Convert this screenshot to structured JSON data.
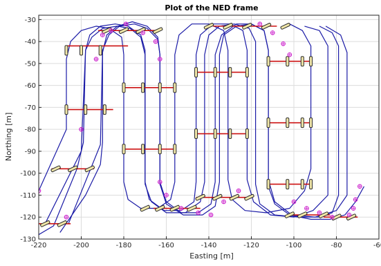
{
  "chart_data": {
    "type": "line",
    "title": "Plot of the NED frame",
    "xlabel": "Easting [m]",
    "ylabel": "Northing [m]",
    "xlim": [
      -220,
      -60
    ],
    "ylim": [
      -130,
      -28
    ],
    "xticks": [
      -220,
      -200,
      -180,
      -160,
      -140,
      -120,
      -100,
      -80,
      -60
    ],
    "yticks": [
      -130,
      -120,
      -110,
      -100,
      -90,
      -80,
      -70,
      -60,
      -50,
      -40,
      -30
    ],
    "grid": true,
    "colors": {
      "path": "#1a1aa6",
      "segment": "#cc1111",
      "marker": "#cc22cc",
      "glyph": "#2b2b2b"
    },
    "series": [
      {
        "polyline": [
          [
            -220,
            -108
          ],
          [
            -207,
            -80
          ],
          [
            -207,
            -48
          ],
          [
            -205,
            -40
          ],
          [
            -200,
            -35
          ],
          [
            -193,
            -33
          ],
          [
            -187,
            -34
          ],
          [
            -181,
            -38
          ],
          [
            -180,
            -46
          ],
          [
            -180,
            -104
          ],
          [
            -178,
            -112
          ],
          [
            -172,
            -116
          ],
          [
            -164,
            -116
          ],
          [
            -158,
            -112
          ],
          [
            -156,
            -104
          ],
          [
            -156,
            -46
          ],
          [
            -154,
            -37
          ],
          [
            -148,
            -32
          ],
          [
            -140,
            -32
          ],
          [
            -133,
            -35
          ],
          [
            -131,
            -44
          ],
          [
            -131,
            -103
          ],
          [
            -129,
            -112
          ],
          [
            -123,
            -117
          ],
          [
            -113,
            -118
          ],
          [
            -102,
            -116
          ],
          [
            -95,
            -108
          ],
          [
            -92,
            -98
          ],
          [
            -92,
            -42
          ],
          [
            -96,
            -35
          ],
          [
            -102,
            -32
          ]
        ]
      },
      {
        "polyline": [
          [
            -217,
            -123
          ],
          [
            -200,
            -90
          ],
          [
            -198,
            -44
          ],
          [
            -195,
            -38
          ],
          [
            -190,
            -34
          ],
          [
            -183,
            -33
          ],
          [
            -177,
            -34
          ],
          [
            -172,
            -38
          ],
          [
            -170,
            -46
          ],
          [
            -170,
            -104
          ],
          [
            -168,
            -112
          ],
          [
            -161,
            -117
          ],
          [
            -153,
            -117
          ],
          [
            -147,
            -113
          ],
          [
            -146,
            -104
          ],
          [
            -146,
            -46
          ],
          [
            -144,
            -37
          ],
          [
            -138,
            -32
          ],
          [
            -130,
            -32
          ],
          [
            -124,
            -35
          ],
          [
            -122,
            -44
          ],
          [
            -122,
            -103
          ],
          [
            -119,
            -113
          ],
          [
            -111,
            -119
          ],
          [
            -100,
            -120
          ],
          [
            -91,
            -117
          ],
          [
            -84,
            -110
          ],
          [
            -84,
            -92
          ],
          [
            -84,
            -42
          ],
          [
            -88,
            -35
          ],
          [
            -95,
            -33
          ]
        ]
      },
      {
        "polyline": [
          [
            -206,
            -123
          ],
          [
            -191,
            -87
          ],
          [
            -190,
            -44
          ],
          [
            -187,
            -37
          ],
          [
            -182,
            -33
          ],
          [
            -175,
            -32
          ],
          [
            -169,
            -34
          ],
          [
            -164,
            -39
          ],
          [
            -163,
            -46
          ],
          [
            -163,
            -104
          ],
          [
            -160,
            -113
          ],
          [
            -153,
            -118
          ],
          [
            -145,
            -118
          ],
          [
            -139,
            -114
          ],
          [
            -137,
            -104
          ],
          [
            -137,
            -46
          ],
          [
            -134,
            -37
          ],
          [
            -127,
            -32
          ],
          [
            -120,
            -32
          ],
          [
            -114,
            -35
          ],
          [
            -112,
            -44
          ],
          [
            -112,
            -103
          ],
          [
            -109,
            -113
          ],
          [
            -101,
            -119
          ],
          [
            -90,
            -120
          ],
          [
            -80,
            -117
          ],
          [
            -75,
            -110
          ],
          [
            -75,
            -45
          ],
          [
            -78,
            -37
          ],
          [
            -85,
            -33
          ]
        ]
      },
      {
        "polyline": [
          [
            -220,
            -128
          ],
          [
            -213,
            -124
          ],
          [
            -202,
            -98
          ],
          [
            -199,
            -86
          ],
          [
            -198,
            -44
          ],
          [
            -196,
            -37
          ],
          [
            -191,
            -33
          ],
          [
            -184,
            -32
          ],
          [
            -178,
            -33
          ],
          [
            -172,
            -37
          ],
          [
            -170,
            -44
          ],
          [
            -170,
            -105
          ],
          [
            -167,
            -113
          ],
          [
            -160,
            -118
          ],
          [
            -151,
            -118
          ],
          [
            -144,
            -113
          ],
          [
            -142,
            -104
          ],
          [
            -142,
            -46
          ],
          [
            -140,
            -37
          ],
          [
            -135,
            -33
          ],
          [
            -128,
            -32
          ],
          [
            -121,
            -34
          ],
          [
            -118,
            -40
          ],
          [
            -118,
            -105
          ],
          [
            -116,
            -114
          ],
          [
            -109,
            -119
          ],
          [
            -98,
            -120
          ],
          [
            -88,
            -120
          ],
          [
            -82,
            -118
          ],
          [
            -79,
            -110
          ],
          [
            -79,
            -42
          ],
          [
            -82,
            -36
          ],
          [
            -88,
            -33
          ]
        ]
      },
      {
        "polyline": [
          [
            -210,
            -127
          ],
          [
            -198,
            -110
          ],
          [
            -191,
            -96
          ],
          [
            -190,
            -86
          ],
          [
            -190,
            -45
          ],
          [
            -188,
            -37
          ],
          [
            -183,
            -33
          ],
          [
            -176,
            -31
          ],
          [
            -169,
            -33
          ],
          [
            -164,
            -38
          ],
          [
            -163,
            -46
          ],
          [
            -163,
            -105
          ],
          [
            -160,
            -114
          ],
          [
            -152,
            -119
          ],
          [
            -143,
            -119
          ],
          [
            -137,
            -115
          ],
          [
            -135,
            -104
          ],
          [
            -135,
            -46
          ],
          [
            -133,
            -37
          ],
          [
            -127,
            -33
          ],
          [
            -120,
            -32
          ],
          [
            -114,
            -35
          ],
          [
            -112,
            -44
          ],
          [
            -112,
            -106
          ],
          [
            -109,
            -114
          ],
          [
            -102,
            -119
          ],
          [
            -92,
            -121
          ],
          [
            -83,
            -121
          ],
          [
            -76,
            -119
          ],
          [
            -71,
            -113
          ],
          [
            -67,
            -106
          ]
        ]
      }
    ],
    "segments": [
      [
        [
          -220,
          -123
        ],
        [
          -205,
          -123
        ]
      ],
      [
        [
          -214,
          -98
        ],
        [
          -194,
          -98
        ]
      ],
      [
        [
          -207,
          -71
        ],
        [
          -185,
          -71
        ]
      ],
      [
        [
          -207,
          -42
        ],
        [
          -178,
          -42
        ]
      ],
      [
        [
          -192,
          -35
        ],
        [
          -163,
          -35
        ]
      ],
      [
        [
          -180,
          -61
        ],
        [
          -156,
          -61
        ]
      ],
      [
        [
          -180,
          -89
        ],
        [
          -156,
          -89
        ]
      ],
      [
        [
          -166,
          -116
        ],
        [
          -144,
          -116
        ]
      ],
      [
        [
          -146,
          -111
        ],
        [
          -122,
          -111
        ]
      ],
      [
        [
          -146,
          -82
        ],
        [
          -122,
          -82
        ]
      ],
      [
        [
          -146,
          -54
        ],
        [
          -122,
          -54
        ]
      ],
      [
        [
          -138,
          -33
        ],
        [
          -108,
          -33
        ]
      ],
      [
        [
          -112,
          -49
        ],
        [
          -92,
          -49
        ]
      ],
      [
        [
          -112,
          -77
        ],
        [
          -92,
          -77
        ]
      ],
      [
        [
          -112,
          -105
        ],
        [
          -92,
          -105
        ]
      ],
      [
        [
          -103,
          -119
        ],
        [
          -83,
          -119
        ]
      ],
      [
        [
          -86,
          -120
        ],
        [
          -70,
          -120
        ]
      ]
    ],
    "markers": [
      [
        -220,
        -108
      ],
      [
        -207,
        -120
      ],
      [
        -200,
        -80
      ],
      [
        -193,
        -48
      ],
      [
        -190,
        -37
      ],
      [
        -186,
        -35
      ],
      [
        -179,
        -32
      ],
      [
        -171,
        -36
      ],
      [
        -165,
        -40
      ],
      [
        -163,
        -48
      ],
      [
        -163,
        -104
      ],
      [
        -160,
        -110
      ],
      [
        -153,
        -116
      ],
      [
        -145,
        -118
      ],
      [
        -139,
        -119
      ],
      [
        -133,
        -113
      ],
      [
        -126,
        -108
      ],
      [
        -116,
        -32
      ],
      [
        -110,
        -36
      ],
      [
        -105,
        -41
      ],
      [
        -102,
        -46
      ],
      [
        -100,
        -113
      ],
      [
        -94,
        -116
      ],
      [
        -88,
        -118
      ],
      [
        -82,
        -120
      ],
      [
        -74,
        -119
      ],
      [
        -72,
        -116
      ],
      [
        -71,
        -112
      ],
      [
        -69,
        -106
      ]
    ],
    "glyphs_vertical": [
      [
        -207,
        -44
      ],
      [
        -200,
        -44
      ],
      [
        -191,
        -44
      ],
      [
        -207,
        -71
      ],
      [
        -198,
        -71
      ],
      [
        -189,
        -71
      ],
      [
        -180,
        -61
      ],
      [
        -171,
        -61
      ],
      [
        -163,
        -61
      ],
      [
        -156,
        -61
      ],
      [
        -180,
        -89
      ],
      [
        -171,
        -89
      ],
      [
        -163,
        -89
      ],
      [
        -156,
        -89
      ],
      [
        -146,
        -54
      ],
      [
        -137,
        -54
      ],
      [
        -130,
        -54
      ],
      [
        -122,
        -54
      ],
      [
        -146,
        -82
      ],
      [
        -137,
        -82
      ],
      [
        -130,
        -82
      ],
      [
        -122,
        -82
      ],
      [
        -112,
        -49
      ],
      [
        -103,
        -49
      ],
      [
        -96,
        -49
      ],
      [
        -92,
        -49
      ],
      [
        -112,
        -77
      ],
      [
        -103,
        -77
      ],
      [
        -96,
        -77
      ],
      [
        -92,
        -77
      ],
      [
        -112,
        -105
      ],
      [
        -103,
        -105
      ],
      [
        -96,
        -105
      ],
      [
        -92,
        -105
      ]
    ],
    "glyphs_slanted": [
      [
        -217,
        -123
      ],
      [
        -209,
        -123
      ],
      [
        -212,
        -98
      ],
      [
        -204,
        -98
      ],
      [
        -196,
        -98
      ],
      [
        -188,
        -35
      ],
      [
        -180,
        -35
      ],
      [
        -172,
        -35
      ],
      [
        -164,
        -35
      ],
      [
        -170,
        -116
      ],
      [
        -163,
        -116
      ],
      [
        -156,
        -116
      ],
      [
        -148,
        -116
      ],
      [
        -144,
        -111
      ],
      [
        -136,
        -111
      ],
      [
        -128,
        -111
      ],
      [
        -121,
        -111
      ],
      [
        -140,
        -33
      ],
      [
        -131,
        -33
      ],
      [
        -122,
        -33
      ],
      [
        -113,
        -33
      ],
      [
        -104,
        -33
      ],
      [
        -102,
        -119
      ],
      [
        -96,
        -119
      ],
      [
        -86,
        -119
      ],
      [
        -80,
        -120
      ],
      [
        -73,
        -120
      ]
    ]
  }
}
